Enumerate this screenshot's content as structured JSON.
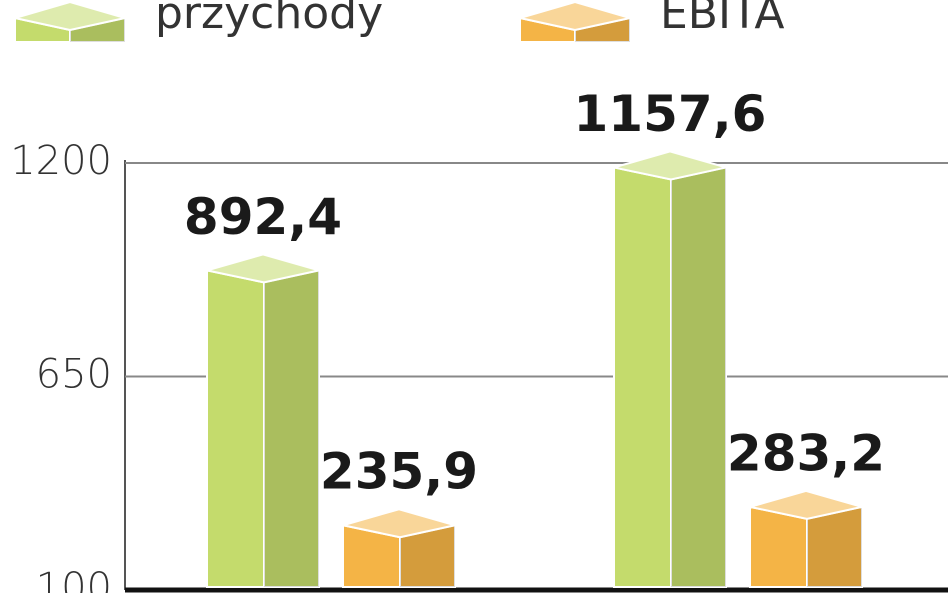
{
  "chart_data": {
    "type": "bar3d",
    "categories": [
      null,
      null
    ],
    "series": [
      {
        "name": "przychody",
        "color": "#c4db6c",
        "values": [
          892.4,
          1157.6
        ],
        "value_labels": [
          "892,4",
          "1157,6"
        ]
      },
      {
        "name": "EBITA",
        "color": "#f4b446",
        "values": [
          235.9,
          283.2
        ],
        "value_labels": [
          "235,9",
          "283,2"
        ]
      }
    ],
    "ylim": [
      100,
      1200
    ],
    "yticks": [
      100,
      650,
      1200
    ],
    "grid": true,
    "legend": "top"
  }
}
